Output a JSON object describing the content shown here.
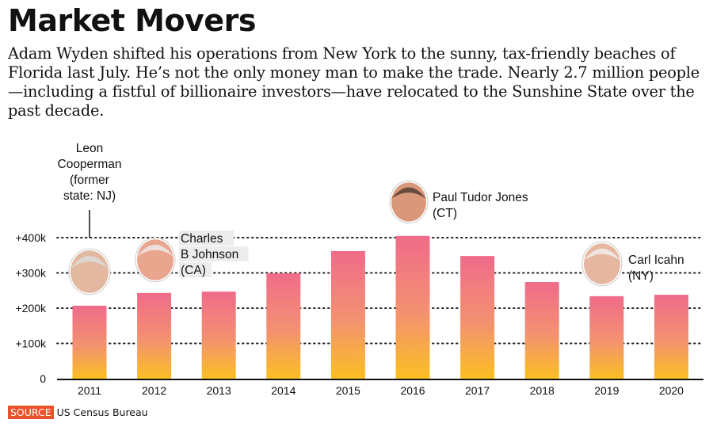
{
  "header": {
    "title": "Market Movers",
    "dek": "Adam Wyden shifted his operations from New York to the sunny, tax-friendly beaches of Florida last July. He’s not the only money man to make the trade. Nearly 2.7 million people—including a fistful of billionaire investors—have relocated to the Sunshine State over the past decade."
  },
  "chart_data": {
    "type": "bar",
    "title": "Market Movers",
    "xlabel": "",
    "ylabel": "",
    "categories": [
      "2011",
      "2012",
      "2013",
      "2014",
      "2015",
      "2016",
      "2017",
      "2018",
      "2019",
      "2020"
    ],
    "values": [
      207000,
      243000,
      247000,
      299000,
      362000,
      405000,
      348000,
      274000,
      234000,
      238000
    ],
    "ylim": [
      0,
      420000
    ],
    "yticks": [
      0,
      100000,
      200000,
      300000,
      400000
    ],
    "ytick_labels": [
      "0",
      "+100k",
      "+200k",
      "+300k",
      "+400k"
    ],
    "grid": "dotted horizontal",
    "colors": {
      "bar_top": "#f06b8a",
      "bar_bottom": "#fbbf22",
      "axis": "#111111"
    },
    "annotations": [
      {
        "year": "2011",
        "lines": [
          "Leon",
          "Cooperman",
          "(former",
          "state: NJ)"
        ]
      },
      {
        "year": "2012",
        "lines": [
          "Charles",
          "B Johnson",
          "(CA)"
        ]
      },
      {
        "year": "2016",
        "lines": [
          "Paul Tudor Jones",
          "(CT)"
        ]
      },
      {
        "year": "2019",
        "lines": [
          "Carl Icahn",
          "(NY)"
        ]
      }
    ]
  },
  "source": {
    "tag": "SOURCE",
    "text": "US Census Bureau",
    "tag_color": "#e9532b"
  }
}
